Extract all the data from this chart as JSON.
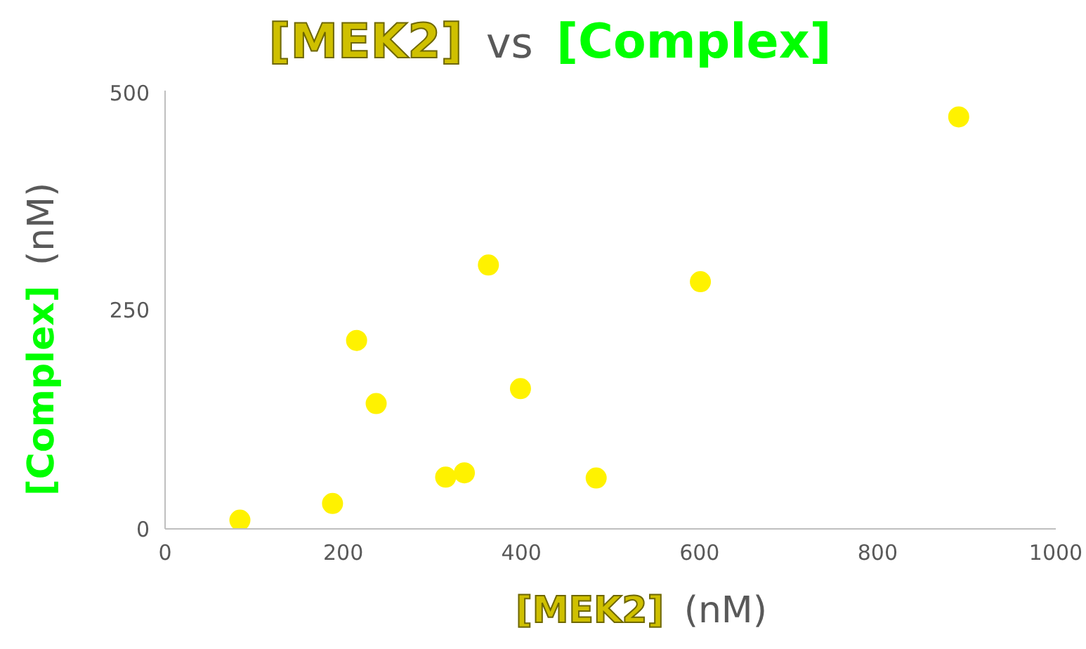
{
  "chart_data": {
    "type": "scatter",
    "title": "[MEK2] vs [Complex]",
    "xlabel": "[MEK2] (nM)",
    "ylabel": "[Complex] (nM)",
    "x": [
      84,
      188,
      215,
      237,
      315,
      336,
      363,
      399,
      484,
      601,
      891
    ],
    "values": [
      10,
      29,
      215,
      143,
      59,
      64,
      301,
      160,
      58,
      282,
      470
    ],
    "color": "#fff200",
    "marker": "circle",
    "xlim": [
      0,
      1000
    ],
    "xticks": [
      0,
      200,
      400,
      600,
      800,
      1000
    ],
    "ylim": [
      0,
      500
    ],
    "yticks": [
      0,
      250,
      500
    ],
    "grid": false
  }
}
